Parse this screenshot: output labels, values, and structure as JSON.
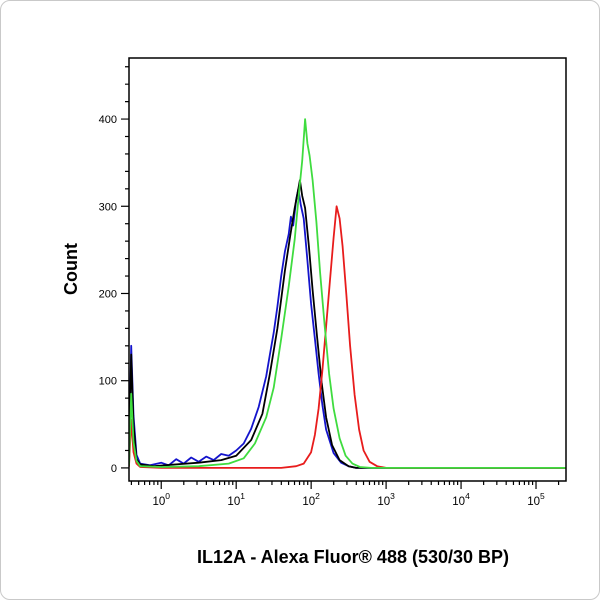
{
  "canvas": {
    "background": "#ffffff",
    "frame_border_color": "#c9c9c9"
  },
  "chart_data": {
    "type": "line",
    "subtype": "flow-cytometry-overlay-histogram",
    "title": "",
    "xlabel": "IL12A - Alexa Fluor® 488 (530/30 BP)",
    "ylabel": "Count",
    "x_scale": "log10",
    "xlog_range": [
      -0.43,
      5.4
    ],
    "ylim": [
      -15,
      470
    ],
    "y_major_ticks": [
      0,
      100,
      200,
      300,
      400
    ],
    "y_minor_step": 20,
    "x_major_tick_exponents": [
      0,
      1,
      2,
      3,
      4,
      5
    ],
    "x_tick_base": "10",
    "grid": false,
    "legend": "none",
    "axis_color": "#000000",
    "series": [
      {
        "name": "blue-sample",
        "color": "#1414cc",
        "peak": {
          "count": 320,
          "log10_x": 1.83
        },
        "points": [
          [
            -0.43,
            5
          ],
          [
            -0.4,
            140
          ],
          [
            -0.37,
            60
          ],
          [
            -0.33,
            15
          ],
          [
            -0.28,
            5
          ],
          [
            -0.15,
            3
          ],
          [
            0.0,
            6
          ],
          [
            0.1,
            3
          ],
          [
            0.2,
            10
          ],
          [
            0.3,
            5
          ],
          [
            0.4,
            12
          ],
          [
            0.5,
            7
          ],
          [
            0.6,
            13
          ],
          [
            0.7,
            9
          ],
          [
            0.8,
            16
          ],
          [
            0.9,
            14
          ],
          [
            1.0,
            20
          ],
          [
            1.1,
            28
          ],
          [
            1.2,
            45
          ],
          [
            1.3,
            70
          ],
          [
            1.4,
            105
          ],
          [
            1.45,
            130
          ],
          [
            1.5,
            155
          ],
          [
            1.55,
            185
          ],
          [
            1.6,
            220
          ],
          [
            1.65,
            248
          ],
          [
            1.7,
            268
          ],
          [
            1.73,
            288
          ],
          [
            1.76,
            278
          ],
          [
            1.8,
            308
          ],
          [
            1.83,
            320
          ],
          [
            1.86,
            302
          ],
          [
            1.9,
            286
          ],
          [
            1.95,
            238
          ],
          [
            2.0,
            188
          ],
          [
            2.05,
            148
          ],
          [
            2.1,
            108
          ],
          [
            2.15,
            72
          ],
          [
            2.2,
            44
          ],
          [
            2.3,
            17
          ],
          [
            2.4,
            6
          ],
          [
            2.5,
            2
          ],
          [
            2.6,
            0
          ],
          [
            5.4,
            0
          ]
        ]
      },
      {
        "name": "black-sample",
        "color": "#000000",
        "peak": {
          "count": 330,
          "log10_x": 1.85
        },
        "points": [
          [
            -0.43,
            4
          ],
          [
            -0.4,
            130
          ],
          [
            -0.37,
            50
          ],
          [
            -0.33,
            10
          ],
          [
            -0.28,
            4
          ],
          [
            -0.1,
            2
          ],
          [
            0.2,
            4
          ],
          [
            0.5,
            6
          ],
          [
            0.8,
            9
          ],
          [
            1.0,
            14
          ],
          [
            1.2,
            32
          ],
          [
            1.35,
            62
          ],
          [
            1.45,
            108
          ],
          [
            1.55,
            160
          ],
          [
            1.65,
            226
          ],
          [
            1.72,
            266
          ],
          [
            1.78,
            298
          ],
          [
            1.82,
            316
          ],
          [
            1.85,
            330
          ],
          [
            1.88,
            312
          ],
          [
            1.92,
            298
          ],
          [
            1.97,
            254
          ],
          [
            2.02,
            204
          ],
          [
            2.08,
            150
          ],
          [
            2.14,
            98
          ],
          [
            2.2,
            58
          ],
          [
            2.28,
            26
          ],
          [
            2.38,
            9
          ],
          [
            2.5,
            2
          ],
          [
            2.6,
            0
          ],
          [
            5.4,
            0
          ]
        ]
      },
      {
        "name": "red-sample",
        "color": "#e81c1c",
        "peak": {
          "count": 300,
          "log10_x": 2.34
        },
        "points": [
          [
            -0.43,
            2
          ],
          [
            -0.4,
            55
          ],
          [
            -0.37,
            18
          ],
          [
            -0.33,
            5
          ],
          [
            -0.28,
            1
          ],
          [
            0.0,
            0
          ],
          [
            1.6,
            0
          ],
          [
            1.8,
            2
          ],
          [
            1.9,
            5
          ],
          [
            2.0,
            18
          ],
          [
            2.05,
            38
          ],
          [
            2.1,
            68
          ],
          [
            2.15,
            112
          ],
          [
            2.2,
            162
          ],
          [
            2.25,
            214
          ],
          [
            2.3,
            264
          ],
          [
            2.34,
            300
          ],
          [
            2.38,
            286
          ],
          [
            2.42,
            254
          ],
          [
            2.47,
            198
          ],
          [
            2.52,
            140
          ],
          [
            2.58,
            84
          ],
          [
            2.64,
            44
          ],
          [
            2.7,
            20
          ],
          [
            2.78,
            7
          ],
          [
            2.88,
            2
          ],
          [
            3.0,
            0
          ],
          [
            5.4,
            0
          ]
        ]
      },
      {
        "name": "green-sample",
        "color": "#3fdc3f",
        "peak": {
          "count": 400,
          "log10_x": 1.92
        },
        "points": [
          [
            -0.43,
            3
          ],
          [
            -0.4,
            85
          ],
          [
            -0.37,
            30
          ],
          [
            -0.33,
            8
          ],
          [
            -0.28,
            2
          ],
          [
            0.0,
            1
          ],
          [
            0.5,
            2
          ],
          [
            0.9,
            5
          ],
          [
            1.1,
            11
          ],
          [
            1.25,
            28
          ],
          [
            1.4,
            58
          ],
          [
            1.5,
            92
          ],
          [
            1.6,
            148
          ],
          [
            1.7,
            208
          ],
          [
            1.78,
            262
          ],
          [
            1.84,
            318
          ],
          [
            1.88,
            352
          ],
          [
            1.92,
            400
          ],
          [
            1.95,
            372
          ],
          [
            1.98,
            358
          ],
          [
            2.02,
            330
          ],
          [
            2.07,
            282
          ],
          [
            2.12,
            224
          ],
          [
            2.18,
            164
          ],
          [
            2.24,
            108
          ],
          [
            2.3,
            68
          ],
          [
            2.38,
            34
          ],
          [
            2.46,
            14
          ],
          [
            2.55,
            5
          ],
          [
            2.65,
            1
          ],
          [
            2.8,
            0
          ],
          [
            5.4,
            0
          ]
        ]
      }
    ]
  }
}
